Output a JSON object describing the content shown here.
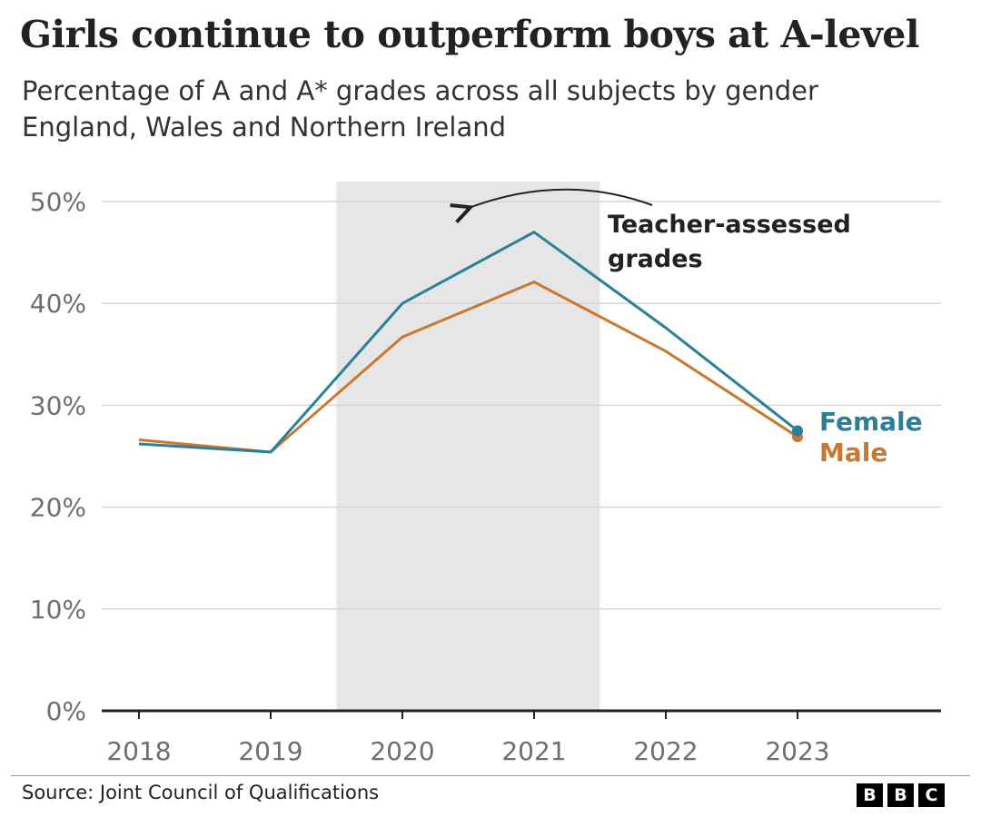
{
  "title": "Girls continue to outperform boys at A-level",
  "subtitle": {
    "line1": "Percentage of A and A* grades across all subjects by gender",
    "line2": "England, Wales and Northern Ireland"
  },
  "footer": {
    "source": "Source: Joint Council of Qualifications",
    "logo_letters": [
      "B",
      "B",
      "C"
    ]
  },
  "chart_data": {
    "type": "line",
    "x": [
      "2018",
      "2019",
      "2020",
      "2021",
      "2022",
      "2023"
    ],
    "series": [
      {
        "name": "Female",
        "values": [
          26.2,
          25.4,
          40.0,
          47.0,
          37.6,
          27.5
        ],
        "color": "#2a7f99"
      },
      {
        "name": "Male",
        "values": [
          26.6,
          25.4,
          36.7,
          42.1,
          35.3,
          26.9
        ],
        "color": "#c9782f"
      }
    ],
    "ylim": [
      0,
      50
    ],
    "yticks": [
      0,
      10,
      20,
      30,
      40,
      50
    ],
    "ytick_labels": [
      "0%",
      "10%",
      "20%",
      "30%",
      "40%",
      "50%"
    ],
    "grid": true,
    "shaded_region": {
      "from": "2020",
      "to": "2021"
    },
    "annotation": {
      "line1": "Teacher-assessed",
      "line2": "grades"
    },
    "colors": {
      "shade": "#e6e6e6",
      "grid": "#d6d6d6",
      "axis": "#222222",
      "tick_label": "#6e6e6e"
    }
  }
}
